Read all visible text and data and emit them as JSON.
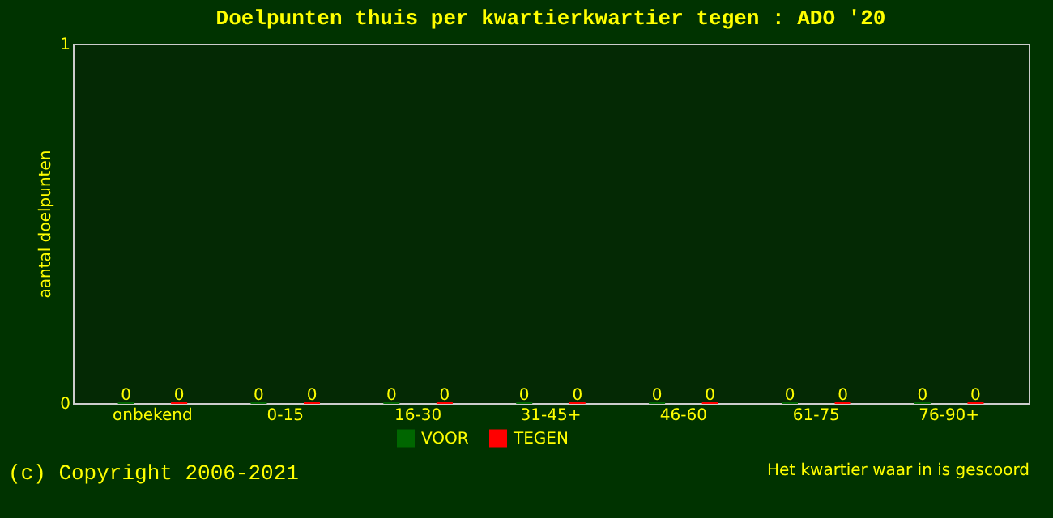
{
  "chart_data": {
    "type": "bar",
    "title": "Doelpunten thuis per kwartierkwartier tegen : ADO '20",
    "categories": [
      "onbekend",
      "0-15",
      "16-30",
      "31-45+",
      "46-60",
      "61-75",
      "76-90+"
    ],
    "series": [
      {
        "name": "VOOR",
        "color": "#006600",
        "values": [
          0,
          0,
          0,
          0,
          0,
          0,
          0
        ]
      },
      {
        "name": "TEGEN",
        "color": "#ff0000",
        "values": [
          0,
          0,
          0,
          0,
          0,
          0,
          0
        ]
      }
    ],
    "ylim": [
      0,
      1
    ],
    "yticks": [
      0,
      1
    ],
    "xlabel": "Het kwartier waar in is gescoord",
    "ylabel": "aantal doelpunten",
    "data_labels": true,
    "legend": "bottom",
    "grid": false,
    "annotations": [
      "(c) Copyright 2006-2021"
    ]
  }
}
